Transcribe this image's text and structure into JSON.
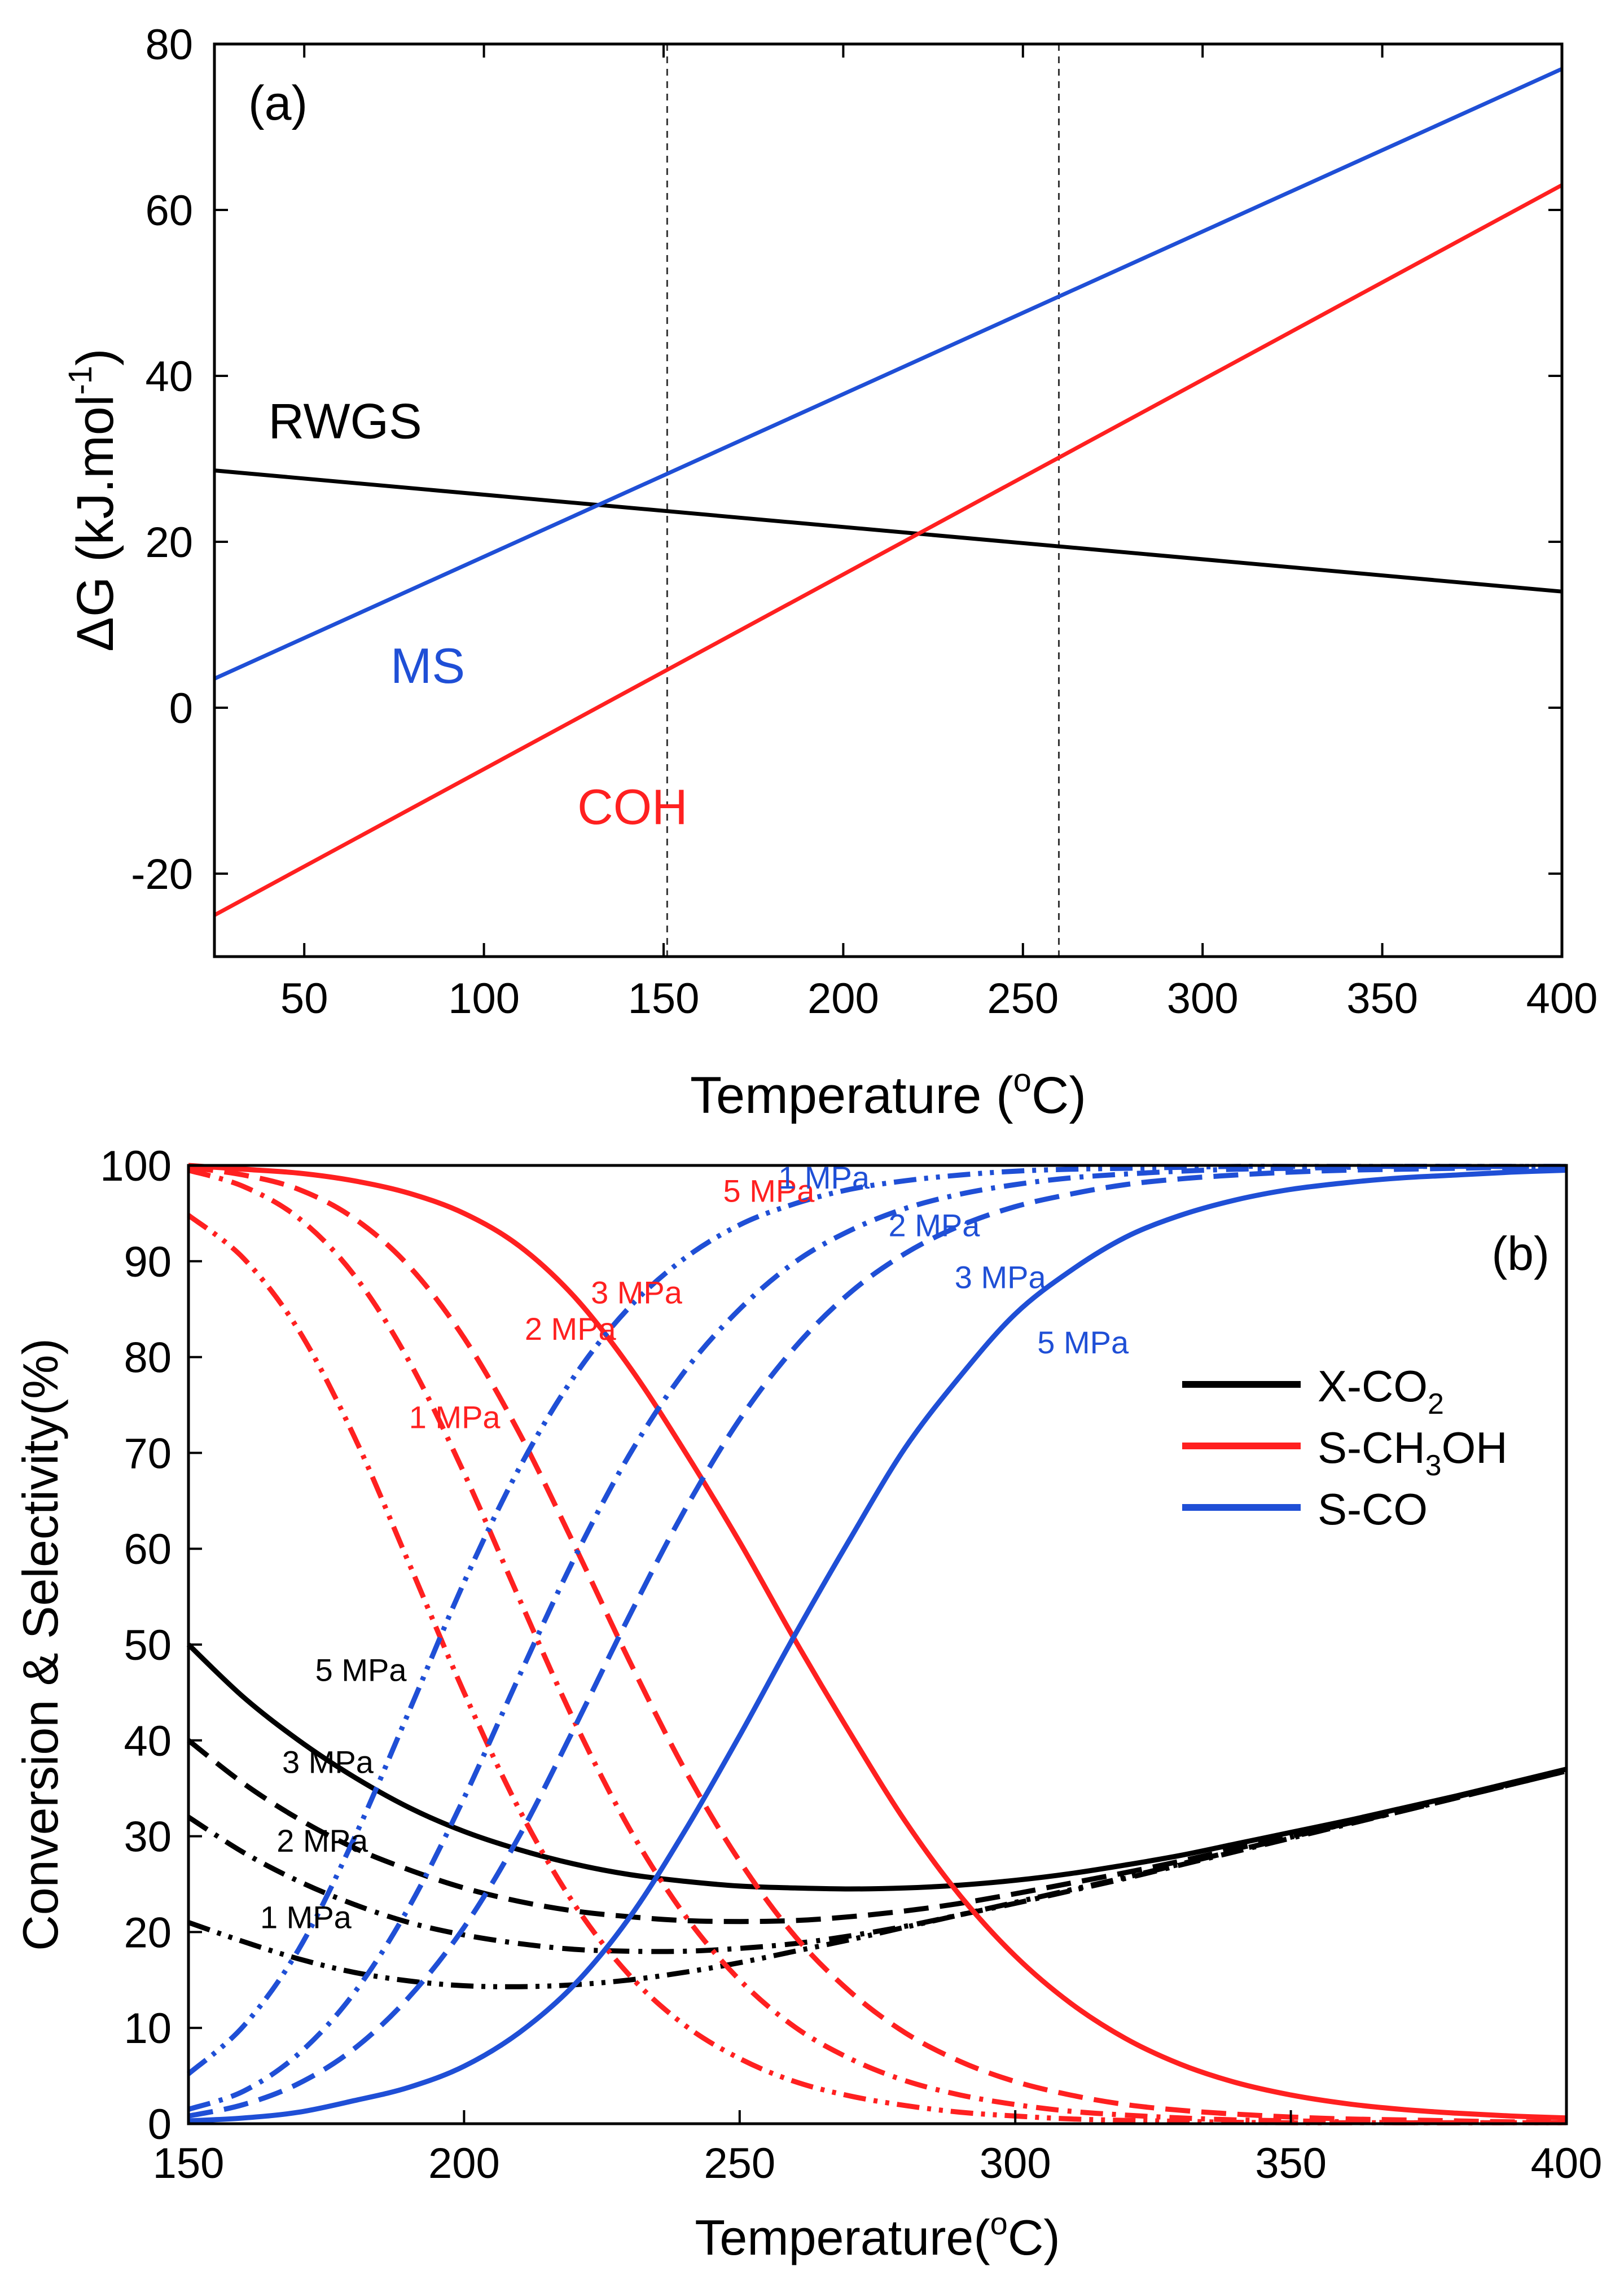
{
  "chart_data": [
    {
      "panel_label": "(a)",
      "type": "line",
      "xlabel_main": "Temperature (",
      "xlabel_sup": "o",
      "xlabel_end": "C)",
      "ylabel_main": "ΔG (kJ.mol",
      "ylabel_sup": "-1",
      "ylabel_end": ")",
      "xlim": [
        25,
        400
      ],
      "ylim": [
        -30,
        80
      ],
      "xticks": [
        50,
        100,
        150,
        200,
        250,
        300,
        350,
        400
      ],
      "yticks": [
        -20,
        0,
        20,
        40,
        60,
        80
      ],
      "vlines": [
        151,
        260
      ],
      "series": [
        {
          "name": "RWGS",
          "color": "#000000",
          "x": [
            25,
            400
          ],
          "y": [
            28.6,
            14.0
          ],
          "label_at": [
            40,
            32.5
          ]
        },
        {
          "name": "MS",
          "color": "#1f4fd6",
          "x": [
            25,
            400
          ],
          "y": [
            3.5,
            77.0
          ],
          "label_at": [
            74,
            3
          ]
        },
        {
          "name": "COH",
          "color": "#ff2020",
          "x": [
            25,
            400
          ],
          "y": [
            -25.0,
            63.0
          ],
          "label_at": [
            126,
            -14
          ]
        }
      ]
    },
    {
      "panel_label": "(b)",
      "type": "line",
      "xlabel_main": "Temperature(",
      "xlabel_sup": "o",
      "xlabel_end": "C)",
      "ylabel": "Conversion & Selectivity(%)",
      "xlim": [
        150,
        400
      ],
      "ylim": [
        0,
        100
      ],
      "xticks": [
        150,
        200,
        250,
        300,
        350,
        400
      ],
      "yticks": [
        0,
        10,
        20,
        30,
        40,
        50,
        60,
        70,
        80,
        90,
        100
      ],
      "legend": [
        {
          "name_main": "X-CO",
          "name_sub": "2",
          "name_end": "",
          "color": "#000000"
        },
        {
          "name_main": "S-CH",
          "name_sub": "3",
          "name_end": "OH",
          "color": "#ff2020"
        },
        {
          "name_main": "S-CO",
          "name_sub": "",
          "name_end": "",
          "color": "#1f4fd6"
        }
      ],
      "x": [
        150,
        160,
        170,
        180,
        190,
        200,
        210,
        220,
        230,
        240,
        250,
        260,
        270,
        280,
        290,
        300,
        310,
        320,
        330,
        340,
        350,
        360,
        370,
        380,
        390,
        400
      ],
      "series": [
        {
          "name": "X-CO2 5 MPa",
          "color": "#000000",
          "dash": "solid",
          "values": [
            50,
            44.5,
            40,
            36.2,
            33,
            30.5,
            28.6,
            27.1,
            26,
            25.3,
            24.8,
            24.6,
            24.5,
            24.6,
            24.9,
            25.4,
            26.1,
            27,
            28,
            29.2,
            30.4,
            31.6,
            32.9,
            34.2,
            35.6,
            37
          ]
        },
        {
          "name": "X-CO2 3 MPa",
          "color": "#000000",
          "dash": "longdash",
          "values": [
            40,
            35.5,
            31.8,
            28.8,
            26.5,
            24.6,
            23.2,
            22.2,
            21.6,
            21.2,
            21.1,
            21.2,
            21.6,
            22.2,
            23,
            24,
            25.1,
            26.2,
            27.4,
            28.7,
            30,
            31.3,
            32.6,
            34,
            35.4,
            36.8
          ]
        },
        {
          "name": "X-CO2 2 MPa",
          "color": "#000000",
          "dash": "dashdot",
          "values": [
            32,
            28.3,
            25.3,
            22.9,
            21,
            19.7,
            18.8,
            18.2,
            18,
            18,
            18.3,
            18.8,
            19.6,
            20.6,
            21.8,
            23,
            24.3,
            25.6,
            27,
            28.4,
            29.8,
            31.2,
            32.6,
            34,
            35.4,
            36.8
          ]
        },
        {
          "name": "X-CO2 1 MPa",
          "color": "#000000",
          "dash": "dashdotdot",
          "values": [
            21,
            19,
            17.2,
            15.8,
            14.9,
            14.4,
            14.3,
            14.5,
            15,
            15.8,
            16.8,
            18,
            19.2,
            20.5,
            21.8,
            23.1,
            24.4,
            25.7,
            27.1,
            28.5,
            29.9,
            31.3,
            32.7,
            34.1,
            35.5,
            36.9
          ]
        },
        {
          "name": "S-CH3OH 5 MPa",
          "color": "#ff2020",
          "dash": "solid",
          "values": [
            100,
            99.6,
            99.2,
            98.4,
            97.1,
            95,
            91.6,
            86.3,
            79,
            70.2,
            60.7,
            50.5,
            40.8,
            31.6,
            23.8,
            17.5,
            12.6,
            8.9,
            6.2,
            4.3,
            3,
            2.1,
            1.5,
            1.1,
            0.8,
            0.6
          ]
        },
        {
          "name": "S-CH3OH 3 MPa",
          "color": "#ff2020",
          "dash": "longdash",
          "values": [
            99.8,
            99,
            97.5,
            94.5,
            89.5,
            82,
            72.1,
            60.4,
            48.3,
            37,
            27.4,
            19.6,
            13.8,
            9.5,
            6.5,
            4.4,
            3,
            2,
            1.4,
            1,
            0.7,
            0.5,
            0.4,
            0.3,
            0.2,
            0.2
          ]
        },
        {
          "name": "S-CH3OH 2 MPa",
          "color": "#ff2020",
          "dash": "dashdot",
          "values": [
            99.5,
            97.8,
            94.5,
            88.6,
            79.6,
            67.9,
            54.8,
            42,
            30.8,
            21.8,
            15,
            10.1,
            6.8,
            4.5,
            3,
            2,
            1.3,
            0.9,
            0.6,
            0.4,
            0.3,
            0.2,
            0.1,
            0.1,
            0.1,
            0.1
          ]
        },
        {
          "name": "S-CH3OH 1 MPa",
          "color": "#ff2020",
          "dash": "dashdotdot",
          "values": [
            94.8,
            90.3,
            82.8,
            71.8,
            58.5,
            45,
            32.8,
            22.9,
            15.5,
            10.3,
            6.8,
            4.4,
            2.9,
            1.9,
            1.2,
            0.8,
            0.5,
            0.35,
            0.25,
            0.15,
            0.1,
            0.1,
            0.1,
            0.1,
            0.1,
            0.1
          ]
        },
        {
          "name": "S-CO 5 MPa",
          "color": "#1f4fd6",
          "dash": "solid",
          "values": [
            0.3,
            0.6,
            1.2,
            2.4,
            3.8,
            6,
            9.5,
            14.5,
            21.5,
            30.5,
            40.5,
            51,
            61,
            70.5,
            78,
            84.5,
            89,
            92.5,
            94.8,
            96.4,
            97.5,
            98.2,
            98.7,
            99,
            99.3,
            99.5
          ]
        },
        {
          "name": "S-CO 3 MPa",
          "color": "#1f4fd6",
          "dash": "longdash",
          "values": [
            0.8,
            2,
            4.2,
            7.8,
            13.2,
            20.5,
            30,
            41.3,
            53,
            64,
            73.5,
            81,
            86.7,
            90.8,
            93.7,
            95.7,
            97,
            98,
            98.6,
            99,
            99.3,
            99.5,
            99.6,
            99.7,
            99.8,
            99.8
          ]
        },
        {
          "name": "S-CO 2 MPa",
          "color": "#1f4fd6",
          "dash": "dashdot",
          "values": [
            1.5,
            3.4,
            7.3,
            13.6,
            22.6,
            34,
            46.7,
            59,
            69.8,
            78.5,
            85,
            89.9,
            93.2,
            95.5,
            97,
            98,
            98.7,
            99.1,
            99.4,
            99.6,
            99.7,
            99.8,
            99.9,
            99.9,
            99.9,
            99.9
          ]
        },
        {
          "name": "S-CO 1 MPa",
          "color": "#1f4fd6",
          "dash": "dashdotdot",
          "values": [
            5.2,
            10.2,
            18.2,
            29.7,
            43,
            56.5,
            68.4,
            78,
            85.2,
            90.3,
            93.8,
            96,
            97.5,
            98.4,
            99,
            99.4,
            99.6,
            99.7,
            99.8,
            99.9,
            99.9,
            99.9,
            99.9,
            99.9,
            99.9,
            99.9
          ]
        }
      ],
      "annotations": [
        {
          "text": "5 MPa",
          "color": "#ff2020",
          "x": 247,
          "y": 96.2
        },
        {
          "text": "3 MPa",
          "color": "#ff2020",
          "x": 223,
          "y": 85.6
        },
        {
          "text": "2 MPa",
          "color": "#ff2020",
          "x": 211,
          "y": 81.8
        },
        {
          "text": "1 MPa",
          "color": "#ff2020",
          "x": 190,
          "y": 72.6
        },
        {
          "text": "1 MPa",
          "color": "#1f4fd6",
          "x": 257,
          "y": 97.6
        },
        {
          "text": "2 MPa",
          "color": "#1f4fd6",
          "x": 277,
          "y": 92.6
        },
        {
          "text": "3 MPa",
          "color": "#1f4fd6",
          "x": 289,
          "y": 87.2
        },
        {
          "text": "5 MPa",
          "color": "#1f4fd6",
          "x": 304,
          "y": 80.4
        },
        {
          "text": "5 MPa",
          "color": "#000000",
          "x": 173,
          "y": 46.2
        },
        {
          "text": "3 MPa",
          "color": "#000000",
          "x": 167,
          "y": 36.6
        },
        {
          "text": "2 MPa",
          "color": "#000000",
          "x": 166,
          "y": 28.4
        },
        {
          "text": "1 MPa",
          "color": "#000000",
          "x": 163,
          "y": 20.4
        }
      ]
    }
  ]
}
